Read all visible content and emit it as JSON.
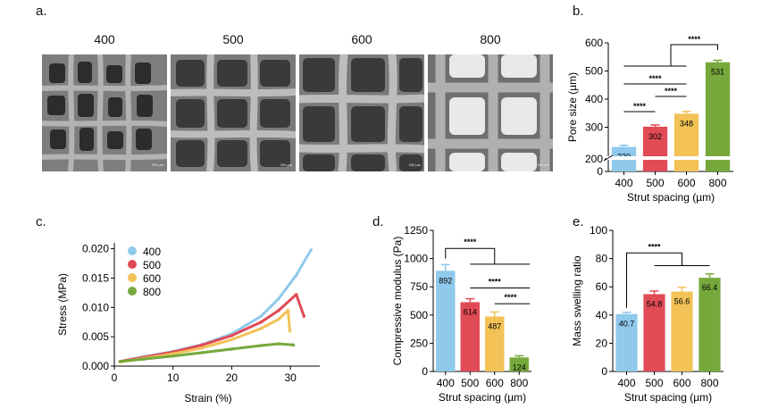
{
  "panels": {
    "a": {
      "letter": "a.",
      "images": [
        {
          "label": "400",
          "scale": "200 µm"
        },
        {
          "label": "500",
          "scale": "200 µm"
        },
        {
          "label": "600",
          "scale": "200 µm"
        },
        {
          "label": "800",
          "scale": "200 µm"
        }
      ]
    },
    "b": {
      "letter": "b."
    },
    "c": {
      "letter": "c."
    },
    "d": {
      "letter": "d."
    },
    "e": {
      "letter": "e."
    }
  },
  "colors": {
    "s400": "#8fc9ec",
    "s500": "#e04b55",
    "s600": "#f2c257",
    "s800": "#76a83c"
  },
  "chart_data": [
    {
      "id": "b",
      "type": "bar",
      "xlabel": "Strut spacing (µm)",
      "ylabel": "Pore size (µm)",
      "categories": [
        "400",
        "500",
        "600",
        "800"
      ],
      "values": [
        230,
        302,
        348,
        531
      ],
      "errors": [
        6,
        6,
        8,
        7
      ],
      "data_labels": [
        "230",
        "302",
        "348",
        "531"
      ],
      "yticks": [
        "0",
        "200",
        "300",
        "400",
        "500",
        "600"
      ],
      "ylim": [
        0,
        600
      ],
      "axis_break": true,
      "significance": [
        {
          "from": "400",
          "to": "500",
          "label": "****"
        },
        {
          "from": "500",
          "to": "600",
          "label": "****"
        },
        {
          "from": "400",
          "to": "600",
          "label": "****"
        },
        {
          "from": "400-600",
          "to": "800",
          "label": "****"
        }
      ]
    },
    {
      "id": "c",
      "type": "line",
      "xlabel": "Strain (%)",
      "ylabel": "Stress (MPa)",
      "xlim": [
        0,
        35
      ],
      "ylim": [
        0,
        0.021
      ],
      "xticks": [
        "0",
        "10",
        "20",
        "30"
      ],
      "yticks": [
        "0.000",
        "0.005",
        "0.010",
        "0.015",
        "0.020"
      ],
      "legend_position": "top-left",
      "series": [
        {
          "name": "400",
          "points": [
            [
              1,
              0.0008
            ],
            [
              5,
              0.0016
            ],
            [
              10,
              0.0025
            ],
            [
              15,
              0.0037
            ],
            [
              20,
              0.0055
            ],
            [
              25,
              0.0085
            ],
            [
              28,
              0.0115
            ],
            [
              31,
              0.0155
            ],
            [
              33.5,
              0.0198
            ]
          ]
        },
        {
          "name": "500",
          "points": [
            [
              1,
              0.0008
            ],
            [
              5,
              0.0015
            ],
            [
              10,
              0.0024
            ],
            [
              15,
              0.0036
            ],
            [
              20,
              0.0052
            ],
            [
              25,
              0.0075
            ],
            [
              28,
              0.0095
            ],
            [
              31,
              0.0122
            ],
            [
              32.3,
              0.0085
            ]
          ]
        },
        {
          "name": "600",
          "points": [
            [
              1,
              0.0007
            ],
            [
              5,
              0.0013
            ],
            [
              10,
              0.0021
            ],
            [
              15,
              0.0031
            ],
            [
              20,
              0.0045
            ],
            [
              25,
              0.0064
            ],
            [
              28,
              0.008
            ],
            [
              29.6,
              0.0095
            ],
            [
              29.9,
              0.006
            ]
          ]
        },
        {
          "name": "800",
          "points": [
            [
              1,
              0.0008
            ],
            [
              5,
              0.0012
            ],
            [
              10,
              0.0017
            ],
            [
              15,
              0.0023
            ],
            [
              20,
              0.0029
            ],
            [
              25,
              0.0035
            ],
            [
              28,
              0.0038
            ],
            [
              30.5,
              0.0036
            ]
          ]
        }
      ]
    },
    {
      "id": "d",
      "type": "bar",
      "xlabel": "Strut spacing (µm)",
      "ylabel": "Compressive modulus (Pa)",
      "categories": [
        "400",
        "500",
        "600",
        "800"
      ],
      "values": [
        892,
        614,
        487,
        124
      ],
      "errors": [
        55,
        30,
        40,
        15
      ],
      "data_labels": [
        "892",
        "614",
        "487",
        "124"
      ],
      "yticks": [
        "0",
        "250",
        "500",
        "750",
        "1000",
        "1250"
      ],
      "ylim": [
        0,
        1250
      ],
      "significance": [
        {
          "from": "400",
          "to": "500-800",
          "label": "****"
        },
        {
          "from": "500",
          "to": "800",
          "label": "****"
        },
        {
          "from": "600",
          "to": "800",
          "label": "****"
        }
      ]
    },
    {
      "id": "e",
      "type": "bar",
      "xlabel": "Strut spacing (µm)",
      "ylabel": "Mass swelling ratio",
      "categories": [
        "400",
        "500",
        "600",
        "800"
      ],
      "values": [
        40.7,
        54.8,
        56.6,
        66.4
      ],
      "errors": [
        1.2,
        2.2,
        3.0,
        2.8
      ],
      "data_labels": [
        "40.7",
        "54.8",
        "56.6",
        "66.4"
      ],
      "yticks": [
        "0",
        "20",
        "40",
        "60",
        "80",
        "100"
      ],
      "ylim": [
        0,
        100
      ],
      "significance": [
        {
          "from": "400",
          "to": "500-800",
          "label": "****"
        }
      ]
    }
  ]
}
